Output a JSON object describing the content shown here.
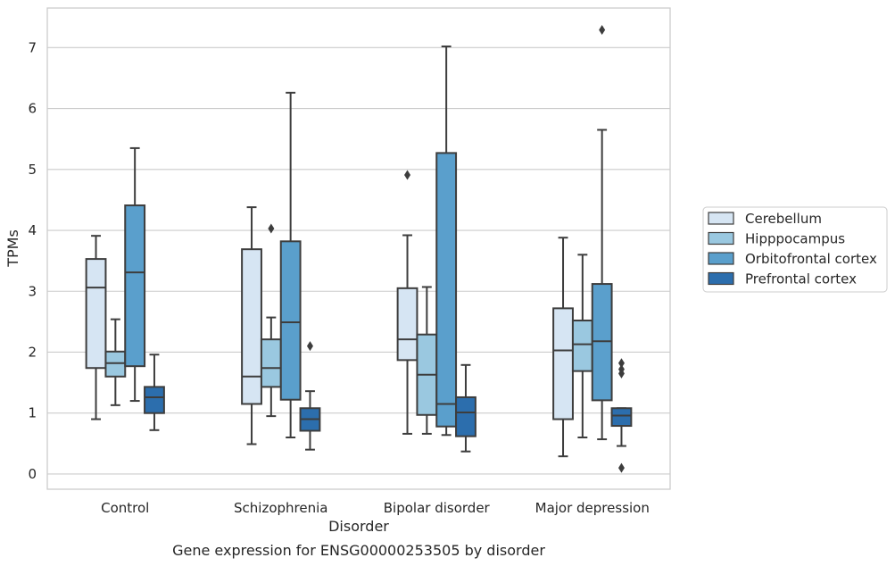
{
  "chart_data": {
    "type": "box",
    "title": "Gene expression for ENSG00000253505 by disorder",
    "xlabel": "Disorder",
    "ylabel": "TPMs",
    "ylim": [
      -0.25,
      7.65
    ],
    "yticks": [
      0,
      1,
      2,
      3,
      4,
      5,
      6,
      7
    ],
    "grid": true,
    "legend_position": "right",
    "categories": [
      "Control",
      "Schizophrenia",
      "Bipolar disorder",
      "Major depression"
    ],
    "series": [
      {
        "name": "Cerebellum",
        "color": "#d6e5f3",
        "boxes": [
          {
            "whislo": 0.9,
            "q1": 1.74,
            "med": 3.06,
            "q3": 3.53,
            "whishi": 3.91,
            "fliers": []
          },
          {
            "whislo": 0.49,
            "q1": 1.15,
            "med": 1.6,
            "q3": 3.69,
            "whishi": 4.38,
            "fliers": []
          },
          {
            "whislo": 0.66,
            "q1": 1.87,
            "med": 2.21,
            "q3": 3.05,
            "whishi": 3.92,
            "fliers": [
              4.91
            ]
          },
          {
            "whislo": 0.29,
            "q1": 0.9,
            "med": 2.03,
            "q3": 2.72,
            "whishi": 3.88,
            "fliers": []
          }
        ]
      },
      {
        "name": "Hipppocampus",
        "color": "#9ac8e0",
        "boxes": [
          {
            "whislo": 1.13,
            "q1": 1.6,
            "med": 1.82,
            "q3": 2.01,
            "whishi": 2.54,
            "fliers": []
          },
          {
            "whislo": 0.95,
            "q1": 1.43,
            "med": 1.74,
            "q3": 2.21,
            "whishi": 2.57,
            "fliers": [
              4.03
            ]
          },
          {
            "whislo": 0.66,
            "q1": 0.97,
            "med": 1.63,
            "q3": 2.29,
            "whishi": 3.07,
            "fliers": []
          },
          {
            "whislo": 0.6,
            "q1": 1.69,
            "med": 2.13,
            "q3": 2.52,
            "whishi": 3.6,
            "fliers": []
          }
        ]
      },
      {
        "name": "Orbitofrontal cortex",
        "color": "#5a9fcc",
        "boxes": [
          {
            "whislo": 1.2,
            "q1": 1.77,
            "med": 3.31,
            "q3": 4.41,
            "whishi": 5.35,
            "fliers": []
          },
          {
            "whislo": 0.6,
            "q1": 1.22,
            "med": 2.49,
            "q3": 3.82,
            "whishi": 6.26,
            "fliers": []
          },
          {
            "whislo": 0.64,
            "q1": 0.78,
            "med": 1.15,
            "q3": 5.27,
            "whishi": 7.02,
            "fliers": []
          },
          {
            "whislo": 0.57,
            "q1": 1.21,
            "med": 2.18,
            "q3": 3.12,
            "whishi": 5.65,
            "fliers": [
              7.29
            ]
          }
        ]
      },
      {
        "name": "Prefrontal cortex",
        "color": "#2c6ead",
        "boxes": [
          {
            "whislo": 0.72,
            "q1": 1.0,
            "med": 1.26,
            "q3": 1.43,
            "whishi": 1.96,
            "fliers": []
          },
          {
            "whislo": 0.4,
            "q1": 0.71,
            "med": 0.9,
            "q3": 1.08,
            "whishi": 1.36,
            "fliers": [
              2.1
            ]
          },
          {
            "whislo": 0.37,
            "q1": 0.62,
            "med": 1.01,
            "q3": 1.26,
            "whishi": 1.79,
            "fliers": []
          },
          {
            "whislo": 0.46,
            "q1": 0.79,
            "med": 0.96,
            "q3": 1.08,
            "whishi": 1.08,
            "fliers": [
              1.82,
              1.72,
              1.65,
              0.1
            ]
          }
        ]
      }
    ]
  }
}
